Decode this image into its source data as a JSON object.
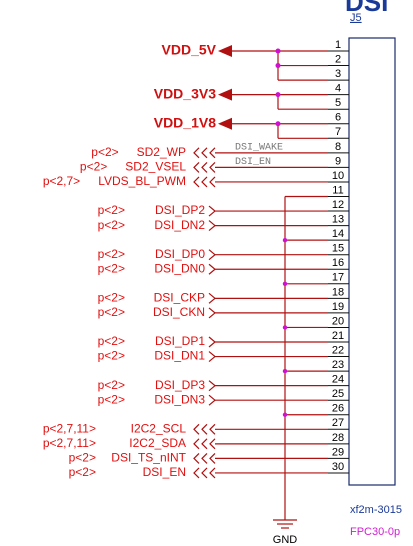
{
  "header": {
    "partial_title": "DSI",
    "ref": "J5"
  },
  "pins": [
    1,
    2,
    3,
    4,
    5,
    6,
    7,
    8,
    9,
    10,
    11,
    12,
    13,
    14,
    15,
    16,
    17,
    18,
    19,
    20,
    21,
    22,
    23,
    24,
    25,
    26,
    27,
    28,
    29,
    30
  ],
  "power": [
    {
      "label": "VDD_5V"
    },
    {
      "label": "VDD_3V3"
    },
    {
      "label": "VDD_1V8"
    }
  ],
  "wire_labels": [
    "DSI_WAKE",
    "DSI_EN"
  ],
  "signals": [
    {
      "page": "p<2>",
      "name": "SD2_WP"
    },
    {
      "page": "p<2>",
      "name": "SD2_VSEL"
    },
    {
      "page": "p<2,7>",
      "name": "LVDS_BL_PWM"
    },
    {
      "page": "p<2>",
      "name": "DSI_DP2"
    },
    {
      "page": "p<2>",
      "name": "DSI_DN2"
    },
    {
      "page": "p<2>",
      "name": "DSI_DP0"
    },
    {
      "page": "p<2>",
      "name": "DSI_DN0"
    },
    {
      "page": "p<2>",
      "name": "DSI_CKP"
    },
    {
      "page": "p<2>",
      "name": "DSI_CKN"
    },
    {
      "page": "p<2>",
      "name": "DSI_DP1"
    },
    {
      "page": "p<2>",
      "name": "DSI_DN1"
    },
    {
      "page": "p<2>",
      "name": "DSI_DP3"
    },
    {
      "page": "p<2>",
      "name": "DSI_DN3"
    },
    {
      "page": "p<2,7,11>",
      "name": "I2C2_SCL"
    },
    {
      "page": "p<2,7,11>",
      "name": "I2C2_SDA"
    },
    {
      "page": "p<2>",
      "name": "DSI_TS_nINT"
    },
    {
      "page": "p<2>",
      "name": "DSI_EN"
    }
  ],
  "footer": {
    "part": "xf2m-3015",
    "footprint": "FPC30-0p",
    "ground": "GND"
  }
}
